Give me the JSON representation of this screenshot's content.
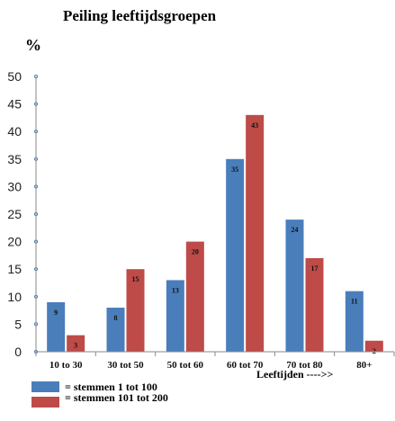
{
  "chart_data": {
    "type": "bar",
    "title": "Peiling leeftijdsgroepen",
    "ylabel": "%",
    "xlabel": "Leeftijden ---->>",
    "categories": [
      "10 to 30",
      "30 tot 50",
      "50 tot 60",
      "60 tot 70",
      "70 tot 80",
      "80+"
    ],
    "series": [
      {
        "name": "= stemmen 1 tot 100",
        "color": "#4a7ebb",
        "values": [
          9,
          8,
          13,
          35,
          24,
          11
        ]
      },
      {
        "name": "= stemmen 101 tot 200",
        "color": "#be4b48",
        "values": [
          3,
          15,
          20,
          43,
          17,
          2
        ]
      }
    ],
    "ylim": [
      0,
      50
    ],
    "yticks": [
      0,
      5,
      10,
      15,
      20,
      25,
      30,
      35,
      40,
      45,
      50
    ],
    "grid": false,
    "legend_position": "bottom-left"
  }
}
